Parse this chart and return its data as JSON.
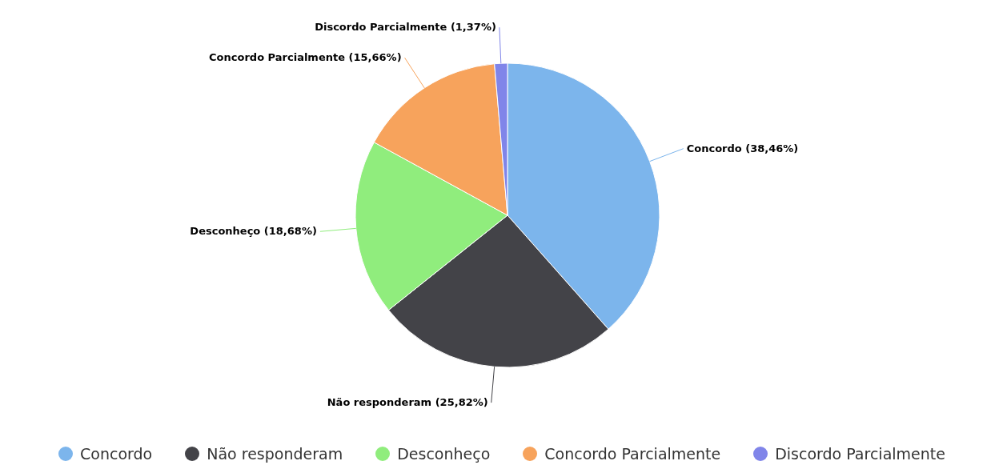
{
  "chart_data": {
    "type": "pie",
    "categories": [
      "Concordo",
      "Não responderam",
      "Desconheço",
      "Concordo Parcialmente",
      "Discordo Parcialmente"
    ],
    "values": [
      38.46,
      25.82,
      18.68,
      15.66,
      1.37
    ],
    "value_labels": [
      "(38,46%)",
      "(25,82%)",
      "(18,68%)",
      "(15,66%)",
      "(1,37%)"
    ],
    "colors": [
      "#7cb5ec",
      "#434348",
      "#90ed7d",
      "#f7a35c",
      "#8085e9"
    ],
    "legend": "bottom"
  }
}
